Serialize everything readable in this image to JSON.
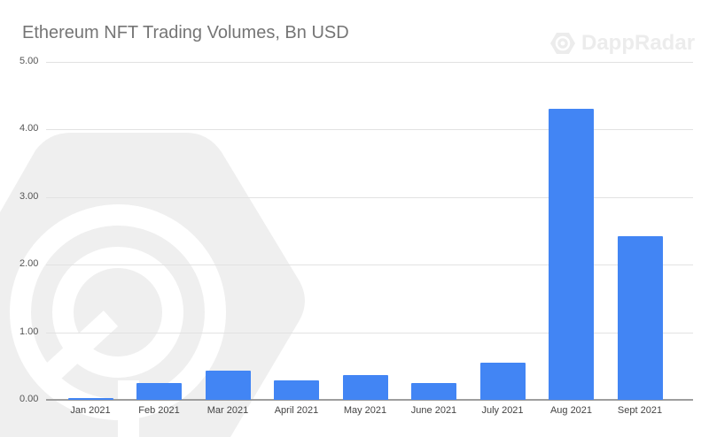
{
  "chart": {
    "title": "Ethereum NFT Trading Volumes, Bn USD",
    "watermark": "DappRadar"
  },
  "chart_data": {
    "type": "bar",
    "title": "Ethereum NFT Trading Volumes, Bn USD",
    "xlabel": "",
    "ylabel": "",
    "categories": [
      "Jan 2021",
      "Feb 2021",
      "Mar 2021",
      "April 2021",
      "May 2021",
      "June 2021",
      "July 2021",
      "Aug 2021",
      "Sept 2021"
    ],
    "values": [
      0.03,
      0.25,
      0.43,
      0.29,
      0.37,
      0.25,
      0.55,
      4.31,
      2.42
    ],
    "ylim": [
      0,
      5
    ],
    "yticks": [
      "0.00",
      "1.00",
      "2.00",
      "3.00",
      "4.00",
      "5.00"
    ],
    "grid": true,
    "legend": "none",
    "bar_color": "#4285f4"
  }
}
